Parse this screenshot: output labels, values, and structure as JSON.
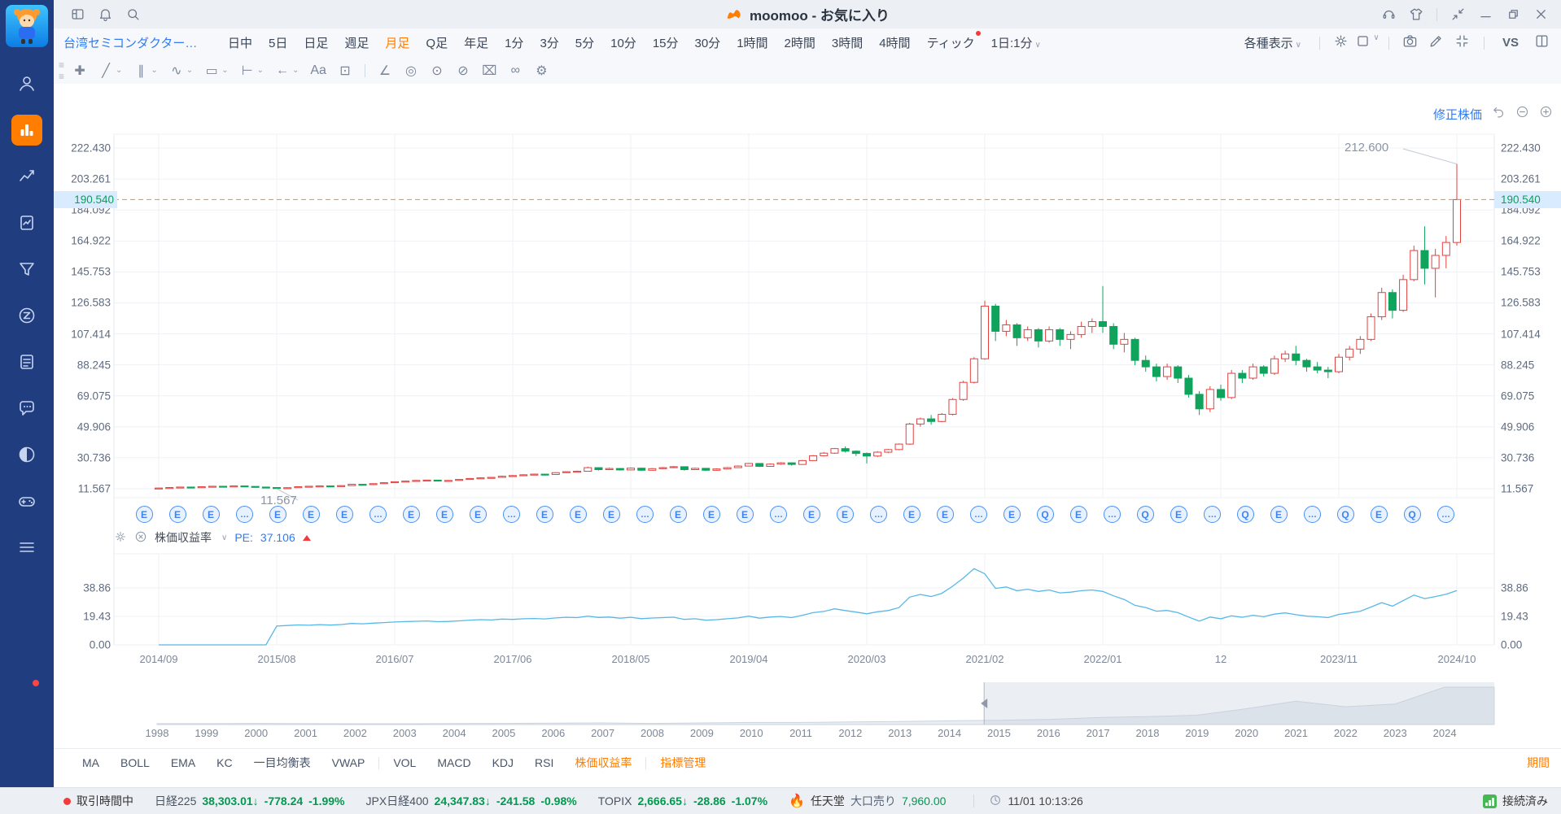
{
  "titlebar": {
    "title": "moomoo - お気に入り",
    "left_icons": [
      {
        "name": "layout-icon"
      },
      {
        "name": "bell-icon"
      },
      {
        "name": "search-icon"
      }
    ],
    "right_icons": [
      {
        "name": "headset-icon"
      },
      {
        "name": "theme-shirt-icon"
      },
      {
        "name": "sep"
      },
      {
        "name": "shrink-window-icon"
      },
      {
        "name": "minimize-icon"
      },
      {
        "name": "restore-icon"
      },
      {
        "name": "close-icon"
      }
    ]
  },
  "sidebar": {
    "items": [
      {
        "name": "nav-profile",
        "icon": "person",
        "active": false
      },
      {
        "name": "nav-quotes",
        "icon": "bars",
        "active": true
      },
      {
        "name": "nav-trend",
        "icon": "trend",
        "active": false
      },
      {
        "name": "nav-analysis",
        "icon": "pagechart",
        "active": false
      },
      {
        "name": "nav-screener",
        "icon": "funnel",
        "active": false
      },
      {
        "name": "nav-z-feature",
        "icon": "zlogo",
        "active": false
      },
      {
        "name": "nav-news",
        "icon": "doc",
        "active": false
      },
      {
        "name": "nav-community",
        "icon": "chat",
        "active": false
      },
      {
        "name": "nav-theme",
        "icon": "moon",
        "active": false
      },
      {
        "name": "nav-games",
        "icon": "gamepad",
        "active": false
      },
      {
        "name": "nav-api",
        "icon": "code",
        "active": false
      }
    ],
    "menu_icon": "menu"
  },
  "tabs": {
    "stock_name": "台湾セミコンダクター・マ...",
    "items": [
      "日中",
      "5日",
      "日足",
      "週足",
      "月足",
      "Q足",
      "年足",
      "1分",
      "3分",
      "5分",
      "10分",
      "15分",
      "30分",
      "1時間",
      "2時間",
      "3時間",
      "4時間",
      "ティック"
    ],
    "active_index": 4,
    "dot_index": 17,
    "interval_selector": "1日:1分",
    "display_menu": "各種表示",
    "vs_label": "VS"
  },
  "toolbar": {
    "tools": [
      {
        "name": "move-tool",
        "glyph": "✚",
        "dd": false
      },
      {
        "name": "trendline-tool",
        "glyph": "╱",
        "dd": true
      },
      {
        "name": "channel-tool",
        "glyph": "∥",
        "dd": true
      },
      {
        "name": "wave-tool",
        "glyph": "∿",
        "dd": true
      },
      {
        "name": "pattern-tool",
        "glyph": "▭",
        "dd": true
      },
      {
        "name": "measure-tool",
        "glyph": "⊢",
        "dd": true
      },
      {
        "name": "arrow-tool",
        "glyph": "←",
        "dd": true
      },
      {
        "name": "text-tool",
        "glyph": "Aa",
        "dd": false
      },
      {
        "name": "comment-tool",
        "glyph": "⊡",
        "dd": false
      },
      {
        "name": "sep"
      },
      {
        "name": "brush-tool",
        "glyph": "∠",
        "dd": false
      },
      {
        "name": "magnet-tool",
        "glyph": "◎",
        "dd": false
      },
      {
        "name": "continuous-draw-tool",
        "glyph": "⊙",
        "dd": false
      },
      {
        "name": "hide-drawings-tool",
        "glyph": "⊘",
        "dd": false
      },
      {
        "name": "delete-drawings-tool",
        "glyph": "⌧",
        "dd": false
      },
      {
        "name": "link-drawings-tool",
        "glyph": "∞",
        "dd": false
      },
      {
        "name": "drawing-settings-tool",
        "glyph": "⚙",
        "dd": false
      }
    ]
  },
  "chart": {
    "adjusted_label": "修正株価",
    "y_axis": [
      "222.430",
      "203.261",
      "184.092",
      "164.922",
      "145.753",
      "126.583",
      "107.414",
      "88.245",
      "69.075",
      "49.906",
      "30.736",
      "11.567"
    ],
    "current_price": "190.540",
    "high_annotation": "212.600",
    "low_annotation": "11.567",
    "x_axis": [
      "2014/09",
      "2015/08",
      "2016/07",
      "2017/06",
      "2018/05",
      "2019/04",
      "2020/03",
      "2021/02",
      "2022/01",
      "12",
      "2023/11",
      "2024/10"
    ],
    "markers_pattern": [
      "E",
      "E",
      "E",
      "…",
      "E",
      "E",
      "E",
      "…",
      "E",
      "E",
      "E",
      "…",
      "E",
      "E",
      "E",
      "…",
      "E",
      "E",
      "E",
      "…",
      "E",
      "E",
      "…",
      "E",
      "E",
      "…",
      "E",
      "Q",
      "E",
      "…",
      "Q",
      "E",
      "…",
      "Q",
      "E",
      "…",
      "Q",
      "E",
      "Q",
      "…"
    ],
    "colors": {
      "up": "#e2413e",
      "down": "#0fa35c",
      "price_line": "#ff8a1e",
      "price_text": "#0aa158",
      "price_badge_bg": "#d9ecff",
      "pe_line": "#57b8e8",
      "marker": "#3f87f5",
      "grid": "#eef1f5",
      "accent": "#ff7d00"
    }
  },
  "pe_panel": {
    "label": "株価収益率",
    "pe_prefix": "PE:",
    "pe_value": "37.106",
    "y_axis": [
      "38.86",
      "19.43",
      "0.00"
    ]
  },
  "navigator": {
    "years": [
      "1998",
      "1999",
      "2000",
      "2001",
      "2002",
      "2003",
      "2004",
      "2005",
      "2006",
      "2007",
      "2008",
      "2009",
      "2010",
      "2011",
      "2012",
      "2013",
      "2014",
      "2015",
      "2016",
      "2017",
      "2018",
      "2019",
      "2020",
      "2021",
      "2022",
      "2023",
      "2024"
    ]
  },
  "chart_data": {
    "type": "candlestick",
    "title": "台湾セミコンダクター 月足 修正株価",
    "start": "2014/09",
    "interval": "monthly",
    "ylim": [
      11.567,
      222.43
    ],
    "price_line": 190.54,
    "last_high": 212.6,
    "min_low": 11.567,
    "candles": [
      [
        11.9,
        12.2,
        11.7,
        12.0
      ],
      [
        12.0,
        12.5,
        11.9,
        12.3
      ],
      [
        12.3,
        12.8,
        12.1,
        12.6
      ],
      [
        12.6,
        12.7,
        12.1,
        12.4
      ],
      [
        12.4,
        13.0,
        12.2,
        12.8
      ],
      [
        12.8,
        13.3,
        12.6,
        13.1
      ],
      [
        13.1,
        13.2,
        12.6,
        12.9
      ],
      [
        12.9,
        13.5,
        12.7,
        13.3
      ],
      [
        13.3,
        13.4,
        12.8,
        13.0
      ],
      [
        13.0,
        13.1,
        12.4,
        12.6
      ],
      [
        12.6,
        12.8,
        12.1,
        12.3
      ],
      [
        12.3,
        12.4,
        11.567,
        11.9
      ],
      [
        11.9,
        12.4,
        11.7,
        12.2
      ],
      [
        12.2,
        13.0,
        12.1,
        12.8
      ],
      [
        12.8,
        13.3,
        12.6,
        13.1
      ],
      [
        13.1,
        13.5,
        12.9,
        13.3
      ],
      [
        13.3,
        13.4,
        12.6,
        12.9
      ],
      [
        12.9,
        13.7,
        12.8,
        13.5
      ],
      [
        13.5,
        14.5,
        13.4,
        14.3
      ],
      [
        14.3,
        14.4,
        13.8,
        14.1
      ],
      [
        14.1,
        14.9,
        14.0,
        14.7
      ],
      [
        14.7,
        15.5,
        14.6,
        15.3
      ],
      [
        15.3,
        16.1,
        15.2,
        15.9
      ],
      [
        15.9,
        16.5,
        15.7,
        16.3
      ],
      [
        16.3,
        16.9,
        16.1,
        16.7
      ],
      [
        16.7,
        17.1,
        16.4,
        16.9
      ],
      [
        16.9,
        17.0,
        16.1,
        16.4
      ],
      [
        16.4,
        16.9,
        16.2,
        16.7
      ],
      [
        16.7,
        17.5,
        16.6,
        17.3
      ],
      [
        17.3,
        18.1,
        17.2,
        17.9
      ],
      [
        17.9,
        18.6,
        17.7,
        18.3
      ],
      [
        18.3,
        18.9,
        18.0,
        18.6
      ],
      [
        18.6,
        19.6,
        18.5,
        19.3
      ],
      [
        19.3,
        20.0,
        19.1,
        19.7
      ],
      [
        19.7,
        20.5,
        19.5,
        20.2
      ],
      [
        20.2,
        20.9,
        20.0,
        20.6
      ],
      [
        20.6,
        20.8,
        20.0,
        20.4
      ],
      [
        20.4,
        21.8,
        20.3,
        21.5
      ],
      [
        21.5,
        22.4,
        21.3,
        22.1
      ],
      [
        22.1,
        22.8,
        21.9,
        22.4
      ],
      [
        22.4,
        25.2,
        22.3,
        24.6
      ],
      [
        24.6,
        24.8,
        22.8,
        23.4
      ],
      [
        23.4,
        24.6,
        23.1,
        24.1
      ],
      [
        24.1,
        24.2,
        22.8,
        23.2
      ],
      [
        23.2,
        24.8,
        23.0,
        24.3
      ],
      [
        24.3,
        24.5,
        22.6,
        23.0
      ],
      [
        23.0,
        24.4,
        22.9,
        24.0
      ],
      [
        24.0,
        25.0,
        23.8,
        24.6
      ],
      [
        24.6,
        25.6,
        24.3,
        25.2
      ],
      [
        25.2,
        25.4,
        22.8,
        23.4
      ],
      [
        23.4,
        24.6,
        23.2,
        24.2
      ],
      [
        24.2,
        24.4,
        22.6,
        23.0
      ],
      [
        23.0,
        24.2,
        22.8,
        23.8
      ],
      [
        23.8,
        25.0,
        23.6,
        24.6
      ],
      [
        24.6,
        26.0,
        24.4,
        25.6
      ],
      [
        25.6,
        27.6,
        25.4,
        27.2
      ],
      [
        27.2,
        27.4,
        25.0,
        25.4
      ],
      [
        25.4,
        27.2,
        25.2,
        26.8
      ],
      [
        26.8,
        28.0,
        26.4,
        27.6
      ],
      [
        27.6,
        27.8,
        25.8,
        26.6
      ],
      [
        26.6,
        29.4,
        26.4,
        29.0
      ],
      [
        29.0,
        32.4,
        28.8,
        32.0
      ],
      [
        32.0,
        34.2,
        31.6,
        33.6
      ],
      [
        33.6,
        36.8,
        33.2,
        36.4
      ],
      [
        36.4,
        37.8,
        34.0,
        34.8
      ],
      [
        34.8,
        35.2,
        31.8,
        33.4
      ],
      [
        33.4,
        34.0,
        27.2,
        31.8
      ],
      [
        31.8,
        34.8,
        31.2,
        34.2
      ],
      [
        34.2,
        36.2,
        33.6,
        35.8
      ],
      [
        35.8,
        39.6,
        35.4,
        39.2
      ],
      [
        39.2,
        52.4,
        38.8,
        51.6
      ],
      [
        51.6,
        55.6,
        50.0,
        54.8
      ],
      [
        54.8,
        57.2,
        51.2,
        53.2
      ],
      [
        53.2,
        58.4,
        52.8,
        57.6
      ],
      [
        57.6,
        67.6,
        57.0,
        66.8
      ],
      [
        66.8,
        78.4,
        66.0,
        77.4
      ],
      [
        77.4,
        93.0,
        76.8,
        92.0
      ],
      [
        92.0,
        128.0,
        91.4,
        124.6
      ],
      [
        124.6,
        126.0,
        103.0,
        109.0
      ],
      [
        109.0,
        116.0,
        106.0,
        113.0
      ],
      [
        113.0,
        114.0,
        100.0,
        105.0
      ],
      [
        105.0,
        112.0,
        103.0,
        110.0
      ],
      [
        110.0,
        111.0,
        99.0,
        103.0
      ],
      [
        103.0,
        112.0,
        102.0,
        110.0
      ],
      [
        110.0,
        111.0,
        100.0,
        104.0
      ],
      [
        104.0,
        109.0,
        98.0,
        107.0
      ],
      [
        107.0,
        115.0,
        105.0,
        112.0
      ],
      [
        112.0,
        117.0,
        108.0,
        115.0
      ],
      [
        115.0,
        137.0,
        108.0,
        112.0
      ],
      [
        112.0,
        114.0,
        98.0,
        101.0
      ],
      [
        101.0,
        108.0,
        96.0,
        104.0
      ],
      [
        104.0,
        105.0,
        88.0,
        91.0
      ],
      [
        91.0,
        94.0,
        84.0,
        87.0
      ],
      [
        87.0,
        89.0,
        78.0,
        81.0
      ],
      [
        81.0,
        89.0,
        79.0,
        87.0
      ],
      [
        87.0,
        88.0,
        77.0,
        80.0
      ],
      [
        80.0,
        82.0,
        68.0,
        70.0
      ],
      [
        70.0,
        72.0,
        57.2,
        61.0
      ],
      [
        61.0,
        75.0,
        59.0,
        73.0
      ],
      [
        73.0,
        76.0,
        66.0,
        68.0
      ],
      [
        68.0,
        85.0,
        67.0,
        83.0
      ],
      [
        83.0,
        85.0,
        77.0,
        80.0
      ],
      [
        80.0,
        89.0,
        79.0,
        87.0
      ],
      [
        87.0,
        88.0,
        81.0,
        83.0
      ],
      [
        83.0,
        94.0,
        82.0,
        92.0
      ],
      [
        92.0,
        97.0,
        90.0,
        95.0
      ],
      [
        95.0,
        100.0,
        88.0,
        91.0
      ],
      [
        91.0,
        92.0,
        84.0,
        87.0
      ],
      [
        87.0,
        90.0,
        83.0,
        85.0
      ],
      [
        85.0,
        87.0,
        80.0,
        84.0
      ],
      [
        84.0,
        95.0,
        83.0,
        93.0
      ],
      [
        93.0,
        100.0,
        91.0,
        98.0
      ],
      [
        98.0,
        106.0,
        95.0,
        104.0
      ],
      [
        104.0,
        120.0,
        103.0,
        118.0
      ],
      [
        118.0,
        136.0,
        116.0,
        133.0
      ],
      [
        133.0,
        135.0,
        117.0,
        122.0
      ],
      [
        122.0,
        144.0,
        121.0,
        141.0
      ],
      [
        141.0,
        162.0,
        140.0,
        159.0
      ],
      [
        159.0,
        174.0,
        138.0,
        148.0
      ],
      [
        148.0,
        160.0,
        130.0,
        156.0
      ],
      [
        156.0,
        168.0,
        148.0,
        164.0
      ],
      [
        164.0,
        212.6,
        162.0,
        190.54
      ]
    ],
    "pe_line": [
      0,
      0,
      0,
      0,
      0,
      0,
      0,
      0,
      0,
      0,
      0,
      12.8,
      13.2,
      13.6,
      13.4,
      13.8,
      13.5,
      13.9,
      14.6,
      14.4,
      14.8,
      15.2,
      15.6,
      15.9,
      16.1,
      16.3,
      15.8,
      16.0,
      16.4,
      16.9,
      17.2,
      17.0,
      17.6,
      17.4,
      17.8,
      18.0,
      17.7,
      18.4,
      18.8,
      18.6,
      19.6,
      18.7,
      19.0,
      18.2,
      18.8,
      17.9,
      18.3,
      18.6,
      18.9,
      17.4,
      17.8,
      16.8,
      17.2,
      17.8,
      18.4,
      19.6,
      18.2,
      19.0,
      19.4,
      18.6,
      20.2,
      22.0,
      22.8,
      24.6,
      23.4,
      22.4,
      21.2,
      22.6,
      23.4,
      25.4,
      32.6,
      34.4,
      33.0,
      35.2,
      40.0,
      45.6,
      52.0,
      48.5,
      38.5,
      39.5,
      37.0,
      38.0,
      36.5,
      37.5,
      35.5,
      36.0,
      37.0,
      37.5,
      36.5,
      33.5,
      31.0,
      27.0,
      25.5,
      23.0,
      23.5,
      22.0,
      19.0,
      16.2,
      19.0,
      17.8,
      19.8,
      18.8,
      20.2,
      19.2,
      21.0,
      21.8,
      20.6,
      19.6,
      19.2,
      18.6,
      20.8,
      21.8,
      23.0,
      25.8,
      28.8,
      26.4,
      30.2,
      34.0,
      31.6,
      33.0,
      34.6,
      37.106
    ],
    "navigator_series": {
      "years": [
        1998,
        1999,
        2000,
        2001,
        2002,
        2003,
        2004,
        2005,
        2006,
        2007,
        2008,
        2009,
        2010,
        2011,
        2012,
        2013,
        2014,
        2015,
        2016,
        2017,
        2018,
        2019,
        2020,
        2021,
        2022,
        2023,
        2024
      ],
      "values": [
        2,
        2,
        2.5,
        2,
        1.8,
        1.8,
        2.2,
        2.5,
        3,
        3.5,
        2.5,
        3.5,
        4.5,
        4.5,
        5.5,
        6.5,
        8,
        9,
        11,
        15,
        17,
        20,
        34,
        50,
        38,
        44,
        80
      ],
      "selection_start_year": 2014.7,
      "selection_end_year": 2024.9
    }
  },
  "indicator_bar": {
    "items": [
      {
        "label": "MA",
        "active": false
      },
      {
        "label": "BOLL",
        "active": false
      },
      {
        "label": "EMA",
        "active": false
      },
      {
        "label": "KC",
        "active": false
      },
      {
        "label": "一目均衡表",
        "active": false
      },
      {
        "label": "VWAP",
        "active": false
      },
      {
        "label": "sep"
      },
      {
        "label": "VOL",
        "active": false
      },
      {
        "label": "MACD",
        "active": false
      },
      {
        "label": "KDJ",
        "active": false
      },
      {
        "label": "RSI",
        "active": false
      },
      {
        "label": "株価収益率",
        "active": true
      },
      {
        "label": "sep"
      },
      {
        "label": "指標管理",
        "active": true
      }
    ],
    "period": "期間"
  },
  "statusbar": {
    "session": "取引時間中",
    "indices": [
      {
        "name": "日経225",
        "value": "38,303.01",
        "arrow": "↓",
        "change": "-778.24",
        "pct": "-1.99%"
      },
      {
        "name": "JPX日経400",
        "value": "24,347.83",
        "arrow": "↓",
        "change": "-241.58",
        "pct": "-0.98%"
      },
      {
        "name": "TOPIX",
        "value": "2,666.65",
        "arrow": "↓",
        "change": "-28.86",
        "pct": "-1.07%"
      }
    ],
    "hot_stock": {
      "flame_icon": "flame-icon",
      "name": "任天堂",
      "label": "大口売り",
      "value": "7,960.00"
    },
    "time": "11/01 10:13:26",
    "connection": "接続済み"
  }
}
